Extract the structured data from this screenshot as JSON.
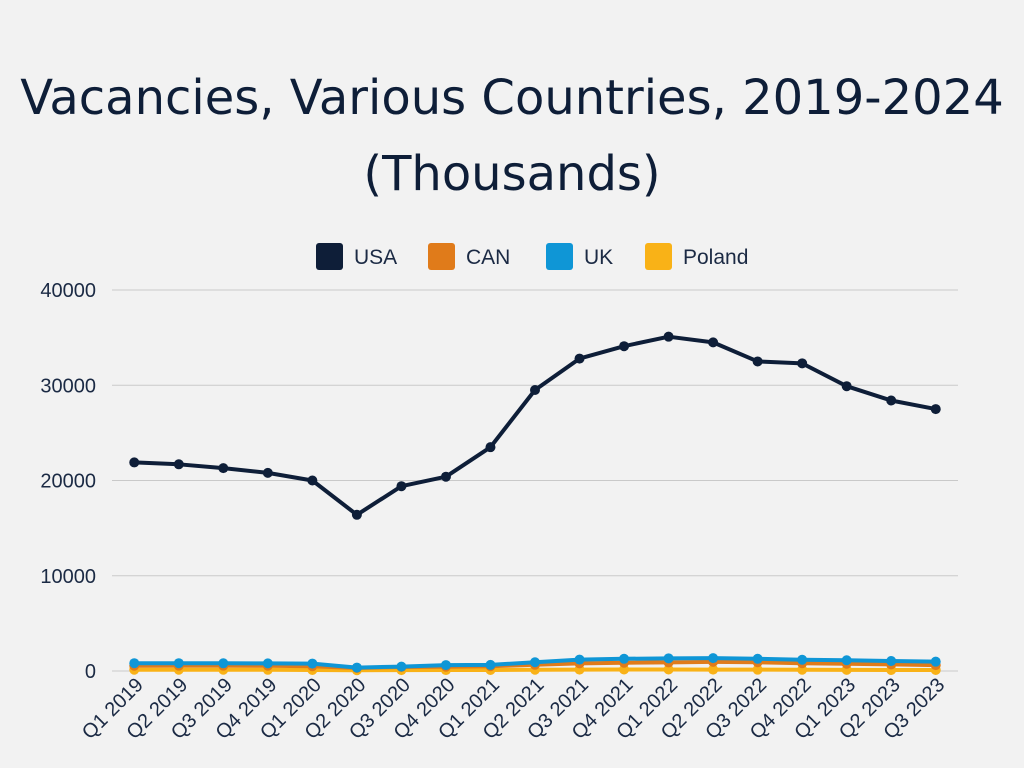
{
  "chart_data": {
    "type": "line",
    "title_line1": "Vacancies, Various Countries, 2019-2024",
    "title_line2": "(Thousands)",
    "xlabel": "",
    "ylabel": "",
    "ylim": [
      0,
      40000
    ],
    "yticks": [
      "0",
      "10000",
      "20000",
      "30000",
      "40000"
    ],
    "grid": true,
    "legend_position": "top-center",
    "categories": [
      "Q1 2019",
      "Q2 2019",
      "Q3 2019",
      "Q4 2019",
      "Q1 2020",
      "Q2 2020",
      "Q3 2020",
      "Q4 2020",
      "Q1 2021",
      "Q2 2021",
      "Q3 2021",
      "Q4 2021",
      "Q1 2022",
      "Q2 2022",
      "Q3 2022",
      "Q4 2022",
      "Q1 2023",
      "Q2 2023",
      "Q3 2023"
    ],
    "series": [
      {
        "name": "USA",
        "color": "#0e1e38",
        "values": [
          21900,
          21700,
          21300,
          20800,
          20000,
          16400,
          19400,
          20400,
          23500,
          29500,
          32800,
          34100,
          35100,
          34500,
          32500,
          32300,
          29900,
          28400,
          27500
        ]
      },
      {
        "name": "CAN",
        "color": "#e07b1a",
        "values": [
          550,
          560,
          560,
          550,
          500,
          320,
          420,
          450,
          500,
          650,
          800,
          870,
          900,
          960,
          920,
          820,
          760,
          700,
          620
        ]
      },
      {
        "name": "UK",
        "color": "#0f96d6",
        "values": [
          820,
          820,
          810,
          800,
          780,
          360,
          460,
          620,
          640,
          920,
          1200,
          1280,
          1330,
          1350,
          1280,
          1180,
          1130,
          1050,
          980
        ]
      },
      {
        "name": "Poland",
        "color": "#f9b217",
        "values": [
          130,
          130,
          130,
          125,
          110,
          80,
          90,
          100,
          110,
          130,
          150,
          155,
          160,
          150,
          140,
          130,
          120,
          110,
          110
        ]
      }
    ]
  }
}
